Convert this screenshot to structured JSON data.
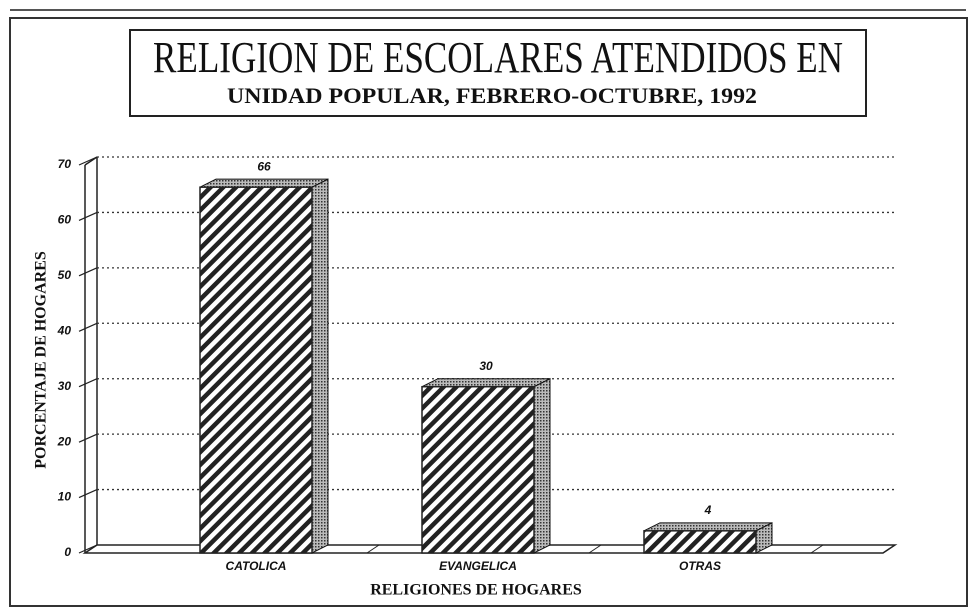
{
  "chart_data": {
    "type": "bar",
    "title": "RELIGION DE ESCOLARES ATENDIDOS EN",
    "subtitle": "UNIDAD POPULAR, FEBRERO-OCTUBRE, 1992",
    "x_label": "RELIGIONES DE HOGARES",
    "y_label": "PORCENTAJE DE HOGARES",
    "categories": [
      "CATOLICA",
      "EVANGELICA",
      "OTRAS"
    ],
    "values": [
      66,
      30,
      4
    ],
    "color": "#222222",
    "ylim": [
      0,
      70
    ],
    "yticks": [
      0,
      10,
      20,
      30,
      40,
      50,
      60,
      70
    ],
    "grid": true
  }
}
